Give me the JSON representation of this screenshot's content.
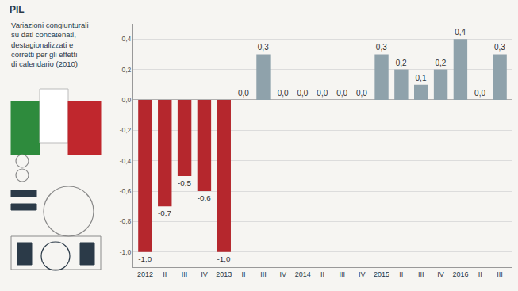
{
  "chart_data": {
    "type": "bar",
    "title": "PIL",
    "subtitle": "Variazioni congiunturali su dati concatenati, destagionalizzati e corretti per gli effetti di calendario (2010)",
    "categories": [
      "2012",
      "II",
      "III",
      "IV",
      "2013",
      "II",
      "III",
      "IV",
      "2014",
      "II",
      "III",
      "IV",
      "2015",
      "II",
      "III",
      "IV",
      "2016",
      "II",
      "III"
    ],
    "values": [
      -1.0,
      -0.7,
      -0.5,
      -0.6,
      -1.0,
      0.0,
      0.3,
      0.0,
      0.0,
      0.0,
      0.0,
      0.0,
      0.3,
      0.2,
      0.1,
      0.2,
      0.4,
      0.0,
      0.3
    ],
    "value_labels": [
      "-1,0",
      "-0,7",
      "-0,5",
      "-0,6",
      "-1,0",
      "0,0",
      "0,3",
      "0,0",
      "0,0",
      "0,0",
      "0,0",
      "0,0",
      "0,3",
      "0,2",
      "0,1",
      "0,2",
      "0,4",
      "0,0",
      "0,3"
    ],
    "colors": [
      "#b5272d",
      "#b5272d",
      "#b5272d",
      "#b5272d",
      "#b5272d",
      "#8fa2ab",
      "#8fa2ab",
      "#8fa2ab",
      "#8fa2ab",
      "#8fa2ab",
      "#8fa2ab",
      "#8fa2ab",
      "#8fa2ab",
      "#8fa2ab",
      "#8fa2ab",
      "#8fa2ab",
      "#8fa2ab",
      "#8fa2ab",
      "#8fa2ab"
    ],
    "ylim": [
      -1.1,
      0.5
    ],
    "yticks": [
      {
        "value": -1.0,
        "label": "-1,0"
      },
      {
        "value": -0.8,
        "label": "-0,8"
      },
      {
        "value": -0.6,
        "label": "-0,6"
      },
      {
        "value": -0.4,
        "label": "-0,4"
      },
      {
        "value": -0.2,
        "label": "-0,2"
      },
      {
        "value": 0,
        "label": "0,0"
      },
      {
        "value": 0.2,
        "label": "0,2"
      },
      {
        "value": 0.4,
        "label": "0,4"
      }
    ],
    "grid": true,
    "data_labels": true
  }
}
